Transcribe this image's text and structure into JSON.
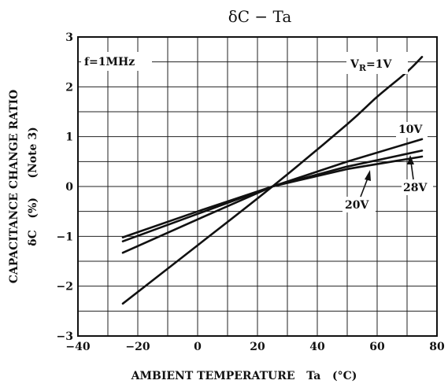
{
  "chart_data": {
    "type": "line",
    "title": "δC − Ta",
    "xlabel": "AMBIENT TEMPERATURE   Ta   (°C)",
    "ylabel_line1": "CAPACITANCE CHANGE RATIO",
    "ylabel_line2": "δC   (%)     (Note 3)",
    "xlim": [
      -40,
      80
    ],
    "ylim": [
      -3,
      3
    ],
    "x_ticks": [
      -40,
      -20,
      0,
      20,
      40,
      60,
      80
    ],
    "x_tick_labels": [
      "−40",
      "−20",
      "0",
      "20",
      "40",
      "60",
      "80"
    ],
    "y_ticks": [
      -3,
      -2,
      -1,
      0,
      1,
      2,
      3
    ],
    "y_tick_labels": [
      "−3",
      "−2",
      "−1",
      "0",
      "1",
      "2",
      "3"
    ],
    "x_minor_step": 10,
    "y_minor_step": 0.5,
    "grid": true,
    "annotation": "f=1MHz",
    "series": [
      {
        "name": "VR=1V",
        "x": [
          -25,
          0,
          25,
          50,
          60,
          70,
          75
        ],
        "y": [
          -2.35,
          -1.18,
          0.0,
          1.25,
          1.8,
          2.3,
          2.6
        ]
      },
      {
        "name": "10V",
        "x": [
          -25,
          0,
          25,
          50,
          75
        ],
        "y": [
          -1.33,
          -0.66,
          0.0,
          0.5,
          0.95
        ]
      },
      {
        "name": "20V",
        "x": [
          -25,
          0,
          25,
          50,
          75
        ],
        "y": [
          -1.1,
          -0.55,
          0.0,
          0.4,
          0.72
        ]
      },
      {
        "name": "28V",
        "x": [
          -25,
          0,
          25,
          50,
          75
        ],
        "y": [
          -1.02,
          -0.5,
          0.0,
          0.35,
          0.6
        ]
      }
    ],
    "labels": {
      "vr_prefix": "V",
      "vr_sub": "R",
      "vr_suffix": "=1V",
      "v10": "10V",
      "v20": "20V",
      "v28": "28V"
    }
  }
}
